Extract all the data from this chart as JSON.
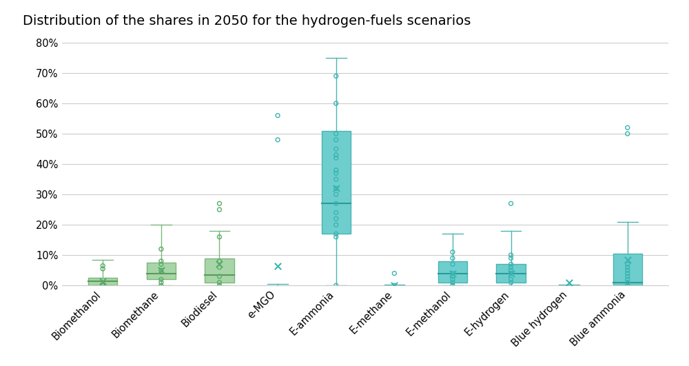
{
  "title": "Distribution of the shares in 2050 for the hydrogen-fuels scenarios",
  "categories": [
    "Biomethanol",
    "Biomethane",
    "Biodiesel",
    "e-MGO",
    "E-ammonia",
    "E-methane",
    "E-methanol",
    "E-hydrogen",
    "Blue hydrogen",
    "Blue ammonia"
  ],
  "box_data": [
    {
      "q1": 0.0,
      "median": 0.015,
      "q3": 0.025,
      "whisker_low": 0.0,
      "whisker_high": 0.085,
      "mean": 0.015,
      "fliers": [
        0.065,
        0.055,
        0.0,
        0.0,
        0.0
      ]
    },
    {
      "q1": 0.02,
      "median": 0.04,
      "q3": 0.075,
      "whisker_low": 0.0,
      "whisker_high": 0.2,
      "mean": 0.05,
      "fliers": [
        0.12,
        0.08,
        0.07,
        0.05,
        0.02,
        0.01,
        0.0
      ]
    },
    {
      "q1": 0.01,
      "median": 0.035,
      "q3": 0.09,
      "whisker_low": 0.0,
      "whisker_high": 0.18,
      "mean": 0.07,
      "fliers": [
        0.27,
        0.25,
        0.16,
        0.08,
        0.06,
        0.03,
        0.01,
        0.0
      ]
    },
    {
      "q1": 0.0,
      "median": 0.0,
      "q3": 0.0,
      "whisker_low": -0.005,
      "whisker_high": 0.005,
      "mean": 0.065,
      "fliers": [
        0.48,
        0.56
      ]
    },
    {
      "q1": 0.17,
      "median": 0.27,
      "q3": 0.51,
      "whisker_low": 0.0,
      "whisker_high": 0.75,
      "mean": 0.32,
      "fliers": [
        0.6,
        0.69,
        0.5,
        0.48,
        0.45,
        0.43,
        0.42,
        0.38,
        0.37,
        0.35,
        0.32,
        0.3,
        0.27,
        0.24,
        0.22,
        0.2,
        0.17,
        0.16,
        0.0
      ]
    },
    {
      "q1": 0.0,
      "median": 0.0,
      "q3": 0.0,
      "whisker_low": -0.003,
      "whisker_high": 0.003,
      "mean": 0.0,
      "fliers": [
        0.04,
        0.0
      ]
    },
    {
      "q1": 0.01,
      "median": 0.04,
      "q3": 0.08,
      "whisker_low": 0.0,
      "whisker_high": 0.17,
      "mean": 0.04,
      "fliers": [
        0.11,
        0.09,
        0.07,
        0.04,
        0.03,
        0.02,
        0.01,
        0.0
      ]
    },
    {
      "q1": 0.01,
      "median": 0.04,
      "q3": 0.07,
      "whisker_low": 0.0,
      "whisker_high": 0.18,
      "mean": 0.04,
      "fliers": [
        0.27,
        0.1,
        0.09,
        0.07,
        0.06,
        0.05,
        0.04,
        0.02,
        0.01
      ]
    },
    {
      "q1": 0.0,
      "median": 0.0,
      "q3": 0.0,
      "whisker_low": -0.003,
      "whisker_high": 0.003,
      "mean": 0.01,
      "fliers": []
    },
    {
      "q1": 0.0,
      "median": 0.01,
      "q3": 0.105,
      "whisker_low": 0.0,
      "whisker_high": 0.21,
      "mean": 0.085,
      "fliers": [
        0.5,
        0.52,
        0.07,
        0.06,
        0.05,
        0.04,
        0.03,
        0.02,
        0.01,
        0.0
      ]
    }
  ],
  "green_indices": [
    0,
    1,
    2
  ],
  "teal_indices": [
    3,
    4,
    5,
    6,
    7,
    8,
    9
  ],
  "box_color_green": "#a8d5a8",
  "box_color_teal": "#6ecece",
  "box_edge_green": "#7ab87a",
  "box_edge_teal": "#4ab4b0",
  "whisker_color_green": "#7ab87a",
  "whisker_color_teal": "#4ab4b0",
  "flier_color_green": "#5aaa6a",
  "flier_color_teal": "#3ab4b0",
  "mean_color_green": "#5aaa6a",
  "mean_color_teal": "#3ab4b0",
  "median_color_green": "#5a9a5a",
  "median_color_teal": "#2a9a96",
  "background_color": "#ffffff",
  "grid_color": "#cccccc",
  "title_fontsize": 14,
  "tick_fontsize": 10.5,
  "ylim": [
    0.0,
    0.82
  ]
}
